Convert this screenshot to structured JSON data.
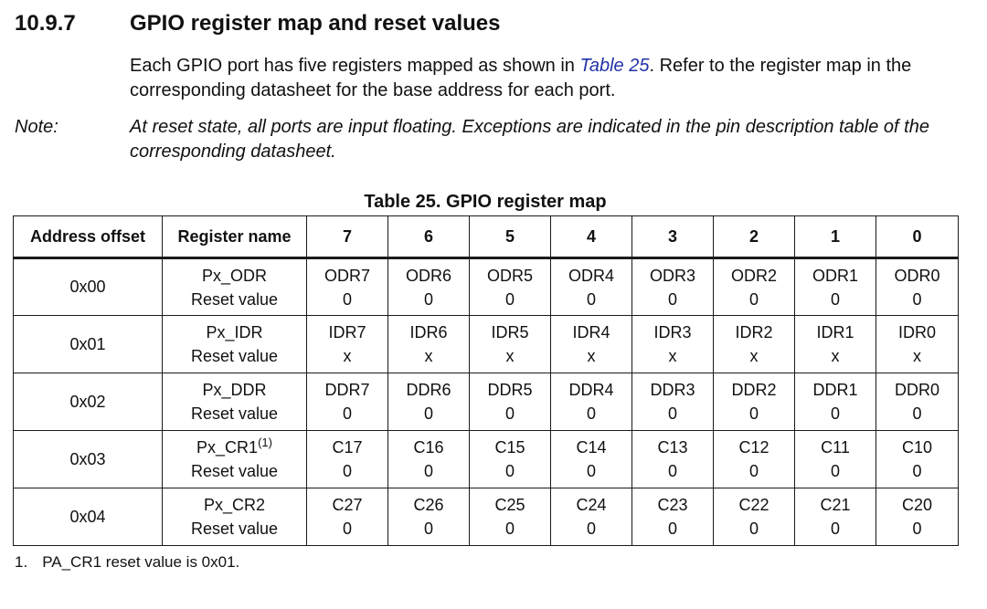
{
  "section": {
    "number": "10.9.7",
    "title": "GPIO register map and reset values"
  },
  "intro": {
    "before_link": "Each GPIO port has five registers mapped as shown in ",
    "link_text": "Table 25",
    "after_link": ". Refer to the register map in the corresponding datasheet for the base address for each port."
  },
  "note": {
    "label": "Note:",
    "text": "At reset state, all ports are input floating. Exceptions are indicated in the pin description table of the corresponding datasheet."
  },
  "table": {
    "caption": "Table 25. GPIO register map",
    "headers": [
      "Address offset",
      "Register name",
      "7",
      "6",
      "5",
      "4",
      "3",
      "2",
      "1",
      "0"
    ],
    "rows": [
      {
        "offset": "0x00",
        "name": "Px_ODR",
        "name_sup": "",
        "sub_label": "Reset value",
        "bits": [
          "ODR7",
          "ODR6",
          "ODR5",
          "ODR4",
          "ODR3",
          "ODR2",
          "ODR1",
          "ODR0"
        ],
        "resets": [
          "0",
          "0",
          "0",
          "0",
          "0",
          "0",
          "0",
          "0"
        ]
      },
      {
        "offset": "0x01",
        "name": "Px_IDR",
        "name_sup": "",
        "sub_label": "Reset value",
        "bits": [
          "IDR7",
          "IDR6",
          "IDR5",
          "IDR4",
          "IDR3",
          "IDR2",
          "IDR1",
          "IDR0"
        ],
        "resets": [
          "x",
          "x",
          "x",
          "x",
          "x",
          "x",
          "x",
          "x"
        ]
      },
      {
        "offset": "0x02",
        "name": "Px_DDR",
        "name_sup": "",
        "sub_label": "Reset value",
        "bits": [
          "DDR7",
          "DDR6",
          "DDR5",
          "DDR4",
          "DDR3",
          "DDR2",
          "DDR1",
          "DDR0"
        ],
        "resets": [
          "0",
          "0",
          "0",
          "0",
          "0",
          "0",
          "0",
          "0"
        ]
      },
      {
        "offset": "0x03",
        "name": "Px_CR1",
        "name_sup": "(1)",
        "sub_label": "Reset value",
        "bits": [
          "C17",
          "C16",
          "C15",
          "C14",
          "C13",
          "C12",
          "C11",
          "C10"
        ],
        "resets": [
          "0",
          "0",
          "0",
          "0",
          "0",
          "0",
          "0",
          "0"
        ]
      },
      {
        "offset": "0x04",
        "name": "Px_CR2",
        "name_sup": "",
        "sub_label": "Reset value",
        "bits": [
          "C27",
          "C26",
          "C25",
          "C24",
          "C23",
          "C22",
          "C21",
          "C20"
        ],
        "resets": [
          "0",
          "0",
          "0",
          "0",
          "0",
          "0",
          "0",
          "0"
        ]
      }
    ],
    "footnote": {
      "number": "1.",
      "text": "PA_CR1 reset value is 0x01."
    }
  },
  "colors": {
    "link": "#2232a8",
    "text": "#111111",
    "border": "#1a1a1a"
  }
}
